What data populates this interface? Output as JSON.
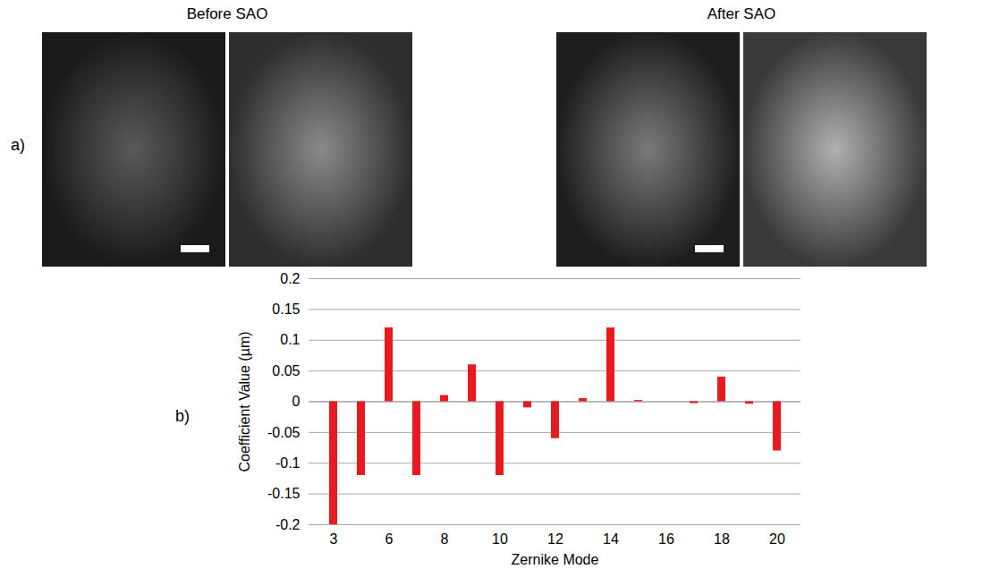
{
  "image_titles": [
    "Before SAO",
    "After SAO"
  ],
  "panel_labels": [
    "a)",
    "b)"
  ],
  "chart_data": {
    "type": "bar",
    "x_label": "Zernike Mode",
    "y_label": "Coefficient Value (µm)",
    "categories": [
      "3",
      null,
      "6",
      null,
      "8",
      null,
      "10",
      null,
      "12",
      null,
      "14",
      null,
      "16",
      null,
      "18",
      null,
      "20"
    ],
    "values": [
      -0.2,
      -0.12,
      0.12,
      -0.12,
      0.01,
      0.06,
      -0.12,
      -0.01,
      -0.06,
      0.005,
      0.12,
      0.002,
      0,
      -0.003,
      0.04,
      -0.004,
      -0.08
    ],
    "color": "#e8191f",
    "ylim": [
      -0.2,
      0.2
    ],
    "yticks": [
      -0.2,
      -0.15,
      -0.1,
      -0.05,
      0,
      0.05,
      0.1,
      0.15,
      0.2
    ],
    "grid": true
  }
}
